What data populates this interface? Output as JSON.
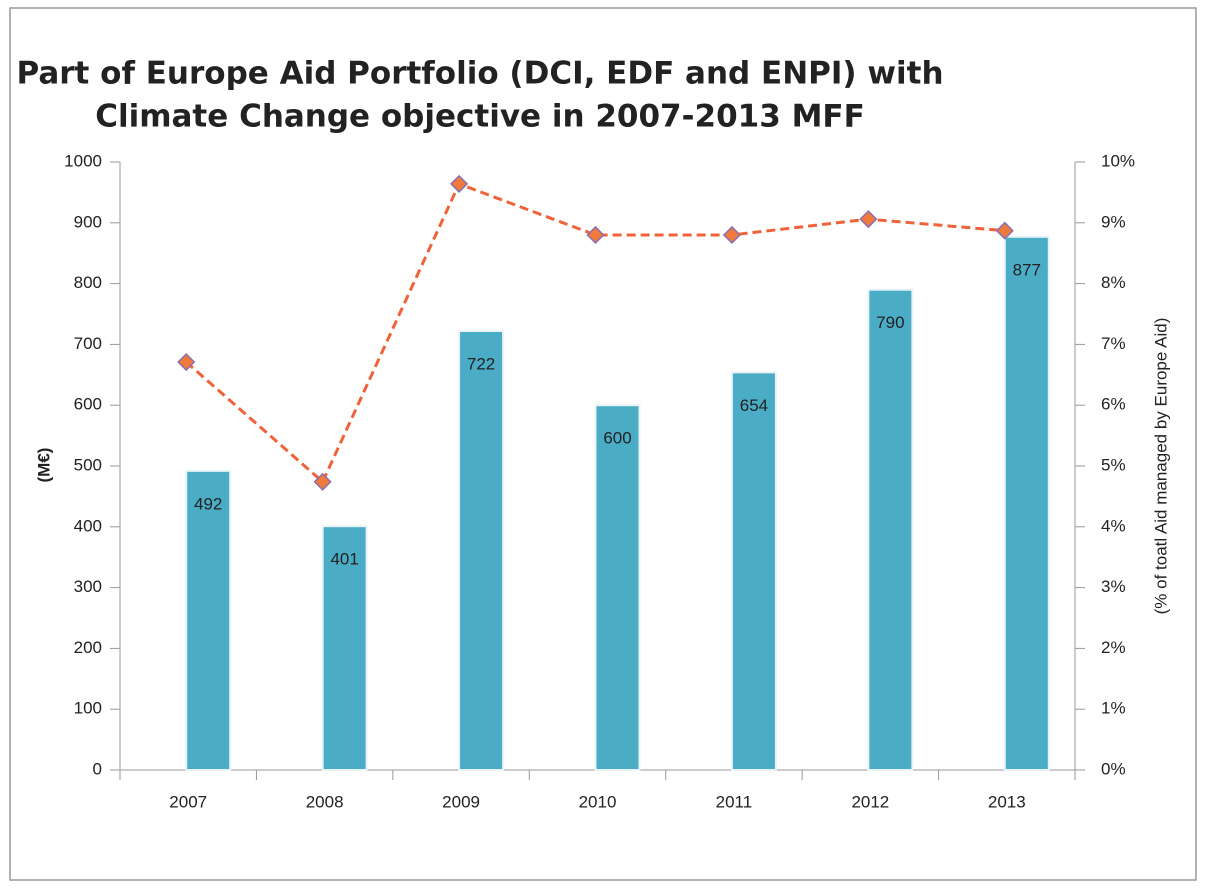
{
  "chart_data": {
    "type": "bar_line",
    "title": [
      "Part of Europe Aid Portfolio (DCI, EDF and ENPI)  with",
      "Climate Change objective in 2007-2013 MFF"
    ],
    "y_label": "(M€)",
    "y2_label": "(% of toatl Aid managed by Europe Aid)",
    "categories": [
      "2007",
      "2008",
      "2009",
      "2010",
      "2011",
      "2012",
      "2013"
    ],
    "series": [
      {
        "type": "bar",
        "color": "#4bacc6",
        "values": [
          492,
          401,
          722,
          600,
          654,
          790,
          877
        ]
      },
      {
        "type": "line",
        "axis": "y2",
        "color": "#f0623a",
        "marker_color": "#f07a3c",
        "marker_edge": "#8a6fb0",
        "values": [
          6.71,
          4.74,
          9.64,
          8.8,
          8.8,
          9.06,
          8.87
        ]
      }
    ],
    "ylim": [
      0,
      1000
    ],
    "yticks": [
      0,
      100,
      200,
      300,
      400,
      500,
      600,
      700,
      800,
      900,
      1000
    ],
    "y2lim": [
      0,
      10
    ],
    "y2ticks": [
      {
        "value": 0,
        "label": "0%"
      },
      {
        "value": 1,
        "label": "1%"
      },
      {
        "value": 2,
        "label": "2%"
      },
      {
        "value": 3,
        "label": "3%"
      },
      {
        "value": 4,
        "label": "4%"
      },
      {
        "value": 5,
        "label": "5%"
      },
      {
        "value": 6,
        "label": "6%"
      },
      {
        "value": 7,
        "label": "7%"
      },
      {
        "value": 8,
        "label": "8%"
      },
      {
        "value": 9,
        "label": "9%"
      },
      {
        "value": 10,
        "label": "10%"
      }
    ]
  }
}
